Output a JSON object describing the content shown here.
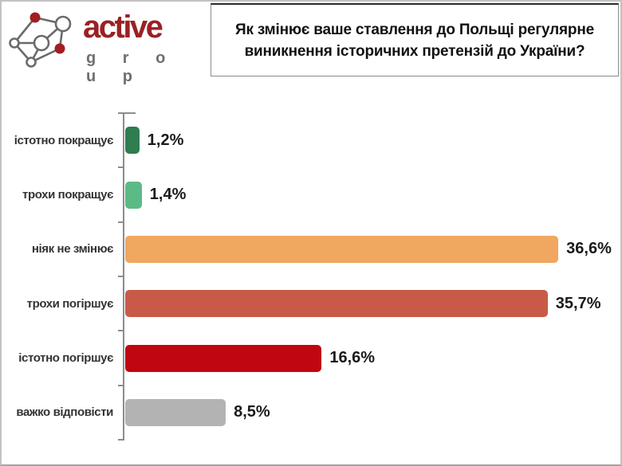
{
  "logo": {
    "name": "active",
    "subname": "g r o u p",
    "brand_color": "#9B2123",
    "sub_color": "#6F6F6F",
    "node_red_color": "#A21E22",
    "node_line_color": "#6a6a6a"
  },
  "title": {
    "text": "Як змінює ваше ставлення до Польщі регулярне виникнення історичних претензій до України?",
    "line1": "Як змінює ваше ставлення до Польщі регулярне",
    "line2": "виникнення історичних претензій до України?"
  },
  "chart_data": {
    "type": "bar",
    "orientation": "horizontal",
    "title": "Як змінює ваше ставлення до Польщі регулярне виникнення історичних претензій до України?",
    "categories": [
      "істотно покращує",
      "трохи покращує",
      "ніяк не змінює",
      "трохи погіршує",
      "істотно погіршує",
      "важко відповісти"
    ],
    "values": [
      1.2,
      1.4,
      36.6,
      35.7,
      16.6,
      8.5
    ],
    "value_labels": [
      "1,2%",
      "1,4%",
      "36,6%",
      "35,7%",
      "16,6%",
      "8,5%"
    ],
    "bar_colors": [
      "#2F7D51",
      "#5CBA86",
      "#F0A75F",
      "#C95A48",
      "#C00711",
      "#B3B3B3"
    ],
    "xlabel": "",
    "ylabel": "",
    "xlim": [
      0,
      40.7
    ],
    "grid": false,
    "legend": false,
    "axis_color": "#8c8c8c"
  }
}
